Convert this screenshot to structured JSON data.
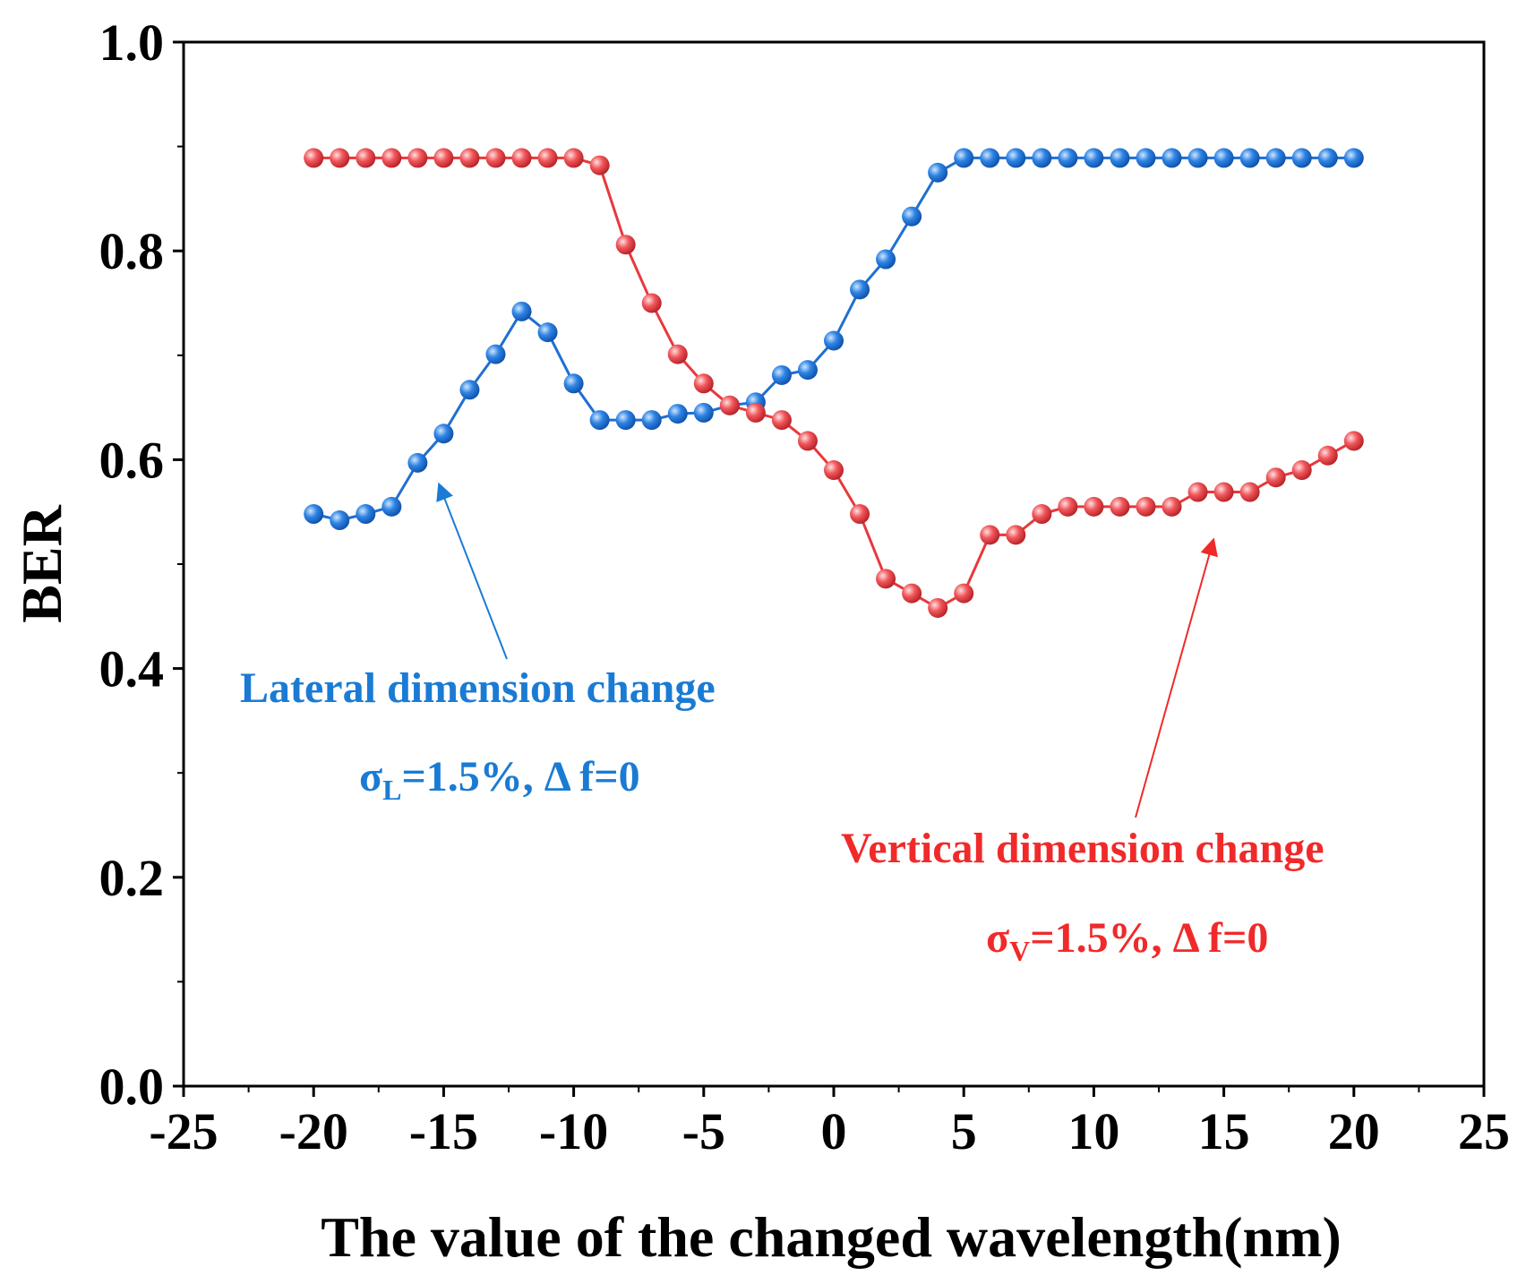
{
  "chart_data": {
    "type": "line",
    "title": "",
    "xlabel": "The value of the changed wavelength(nm)",
    "ylabel": "BER",
    "xlim": [
      -25,
      25
    ],
    "ylim": [
      0.0,
      1.0
    ],
    "x_ticks": [
      -25,
      -20,
      -15,
      -10,
      -5,
      0,
      5,
      10,
      15,
      20,
      25
    ],
    "x_tick_labels": [
      "-25",
      "-20",
      "-15",
      "-10",
      "-5",
      "0",
      "5",
      "10",
      "15",
      "20",
      "25"
    ],
    "y_ticks": [
      0.0,
      0.2,
      0.4,
      0.6,
      0.8,
      1.0
    ],
    "y_tick_labels": [
      "0.0",
      "0.2",
      "0.4",
      "0.6",
      "0.8",
      "1.0"
    ],
    "grid": false,
    "x": [
      -20,
      -19,
      -18,
      -17,
      -16,
      -15,
      -14,
      -13,
      -12,
      -11,
      -10,
      -9,
      -8,
      -7,
      -6,
      -5,
      -4,
      -3,
      -2,
      -1,
      0,
      1,
      2,
      3,
      4,
      5,
      6,
      7,
      8,
      9,
      10,
      11,
      12,
      13,
      14,
      15,
      16,
      17,
      18,
      19,
      20
    ],
    "series": [
      {
        "name": "Lateral dimension change",
        "color": "#1f6fd1",
        "values": [
          0.548,
          0.542,
          0.548,
          0.555,
          0.597,
          0.625,
          0.667,
          0.701,
          0.742,
          0.722,
          0.673,
          0.638,
          0.638,
          0.638,
          0.644,
          0.645,
          0.652,
          0.655,
          0.681,
          0.686,
          0.714,
          0.763,
          0.792,
          0.833,
          0.875,
          0.889,
          0.889,
          0.889,
          0.889,
          0.889,
          0.889,
          0.889,
          0.889,
          0.889,
          0.889,
          0.889,
          0.889,
          0.889,
          0.889,
          0.889,
          0.889
        ]
      },
      {
        "name": "Vertical dimension change",
        "color": "#e8383d",
        "values": [
          0.889,
          0.889,
          0.889,
          0.889,
          0.889,
          0.889,
          0.889,
          0.889,
          0.889,
          0.889,
          0.889,
          0.882,
          0.806,
          0.75,
          0.701,
          0.673,
          0.652,
          0.645,
          0.638,
          0.618,
          0.59,
          0.548,
          0.486,
          0.472,
          0.458,
          0.472,
          0.528,
          0.528,
          0.548,
          0.555,
          0.555,
          0.555,
          0.555,
          0.555,
          0.569,
          0.569,
          0.569,
          0.583,
          0.59,
          0.604,
          0.618
        ]
      }
    ],
    "annotations": [
      {
        "series": "Lateral dimension change",
        "label": "Lateral dimension change",
        "sigma_symbol": "σ",
        "sigma_subscript": "L",
        "param_text": "=1.5%, Δ f=0",
        "arrow_target": [
          -15,
          0.57
        ],
        "color": "#1a7bd4"
      },
      {
        "series": "Vertical dimension change",
        "label": "Vertical dimension change",
        "sigma_symbol": "σ",
        "sigma_subscript": "V",
        "param_text": "=1.5%, Δ f=0",
        "arrow_target": [
          15,
          0.52
        ],
        "color": "#f02a2a"
      }
    ]
  }
}
